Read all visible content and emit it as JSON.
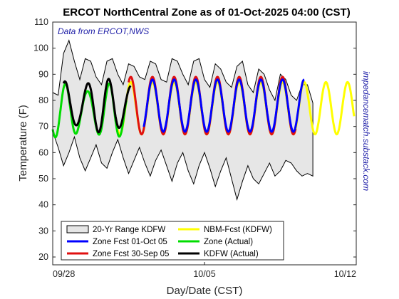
{
  "chart_data": {
    "type": "line",
    "title": "ERCOT NorthCentral Zone as of 01-Oct-2025 04:00 (CST)",
    "xlabel": "Day/Date (CST)",
    "ylabel": "Temperature (F)",
    "annotation": "Data from ERCOT,NWS",
    "side_note": "impedancematch.substack.com",
    "x_ticks": [
      "09/28",
      "10/05",
      "10/12"
    ],
    "x_range_days": [
      0,
      14
    ],
    "y_ticks": [
      20,
      30,
      40,
      50,
      60,
      70,
      80,
      90,
      100,
      110
    ],
    "ylim": [
      17,
      110
    ],
    "legend_position": "bottom-left",
    "band": {
      "name": "20-Yr Range KDFW",
      "fill": "#e6e6e6",
      "x": [
        0,
        0.25,
        0.5,
        0.75,
        1,
        1.25,
        1.5,
        1.75,
        2,
        2.25,
        2.5,
        2.75,
        3,
        3.25,
        3.5,
        3.75,
        4,
        4.25,
        4.5,
        4.75,
        5,
        5.25,
        5.5,
        5.75,
        6,
        6.25,
        6.5,
        6.75,
        7,
        7.25,
        7.5,
        7.75,
        8,
        8.25,
        8.5,
        8.75,
        9,
        9.25,
        9.5,
        9.75,
        10,
        10.25,
        10.5,
        10.75,
        11,
        11.25,
        11.5,
        11.75,
        12
      ],
      "upper": [
        83,
        82,
        98,
        103,
        95,
        88,
        96,
        95,
        89,
        86,
        95,
        96,
        90,
        86,
        94,
        93,
        89,
        88,
        95,
        94,
        88,
        87,
        96,
        95,
        90,
        86,
        95,
        96,
        88,
        85,
        94,
        92,
        87,
        85,
        93,
        95,
        86,
        83,
        92,
        90,
        84,
        80,
        90,
        88,
        82,
        80,
        86,
        86,
        79
      ],
      "lower": [
        68,
        62,
        55,
        60,
        66,
        58,
        53,
        58,
        63,
        56,
        54,
        60,
        65,
        58,
        52,
        57,
        62,
        56,
        51,
        57,
        61,
        55,
        49,
        56,
        60,
        53,
        48,
        55,
        60,
        54,
        47,
        53,
        58,
        50,
        42,
        49,
        55,
        50,
        48,
        52,
        56,
        51,
        53,
        57,
        56,
        53,
        51,
        52,
        51
      ]
    },
    "series": [
      {
        "name": "Zone Fcst 01-Oct 05",
        "color": "#0000ff",
        "x_start": 4.2,
        "x_end": 11.6,
        "mean": 78,
        "amp": 10
      },
      {
        "name": "Zone Fcst 30-Sep 05",
        "color": "#e01010",
        "x_start": 3.5,
        "x_end": 11.2,
        "mean": 78,
        "amp": 11
      },
      {
        "name": "NBM-Fcst (KDFW)",
        "color": "#ffff00",
        "x_start": 3.0,
        "x_end": 13.9,
        "mean": 77,
        "amp": 10
      },
      {
        "name": "Zone (Actual)",
        "color": "#00dd00",
        "x_start": 0.0,
        "x_end": 3.4,
        "mean": 76,
        "amp": 9
      },
      {
        "name": "KDFW (Actual)",
        "color": "#000000",
        "x_start": 0.5,
        "x_end": 3.6,
        "mean": 78,
        "amp": 9
      }
    ]
  },
  "legend": {
    "items": [
      {
        "label": "20-Yr Range KDFW",
        "kind": "patch",
        "color": "#e6e6e6"
      },
      {
        "label": "NBM-Fcst (KDFW)",
        "kind": "line",
        "color": "#ffff00"
      },
      {
        "label": "Zone Fcst 01-Oct 05",
        "kind": "line",
        "color": "#0000ff"
      },
      {
        "label": "Zone (Actual)",
        "kind": "line",
        "color": "#00dd00"
      },
      {
        "label": "Zone Fcst 30-Sep 05",
        "kind": "line",
        "color": "#e01010"
      },
      {
        "label": "KDFW (Actual)",
        "kind": "line",
        "color": "#000000"
      }
    ]
  }
}
